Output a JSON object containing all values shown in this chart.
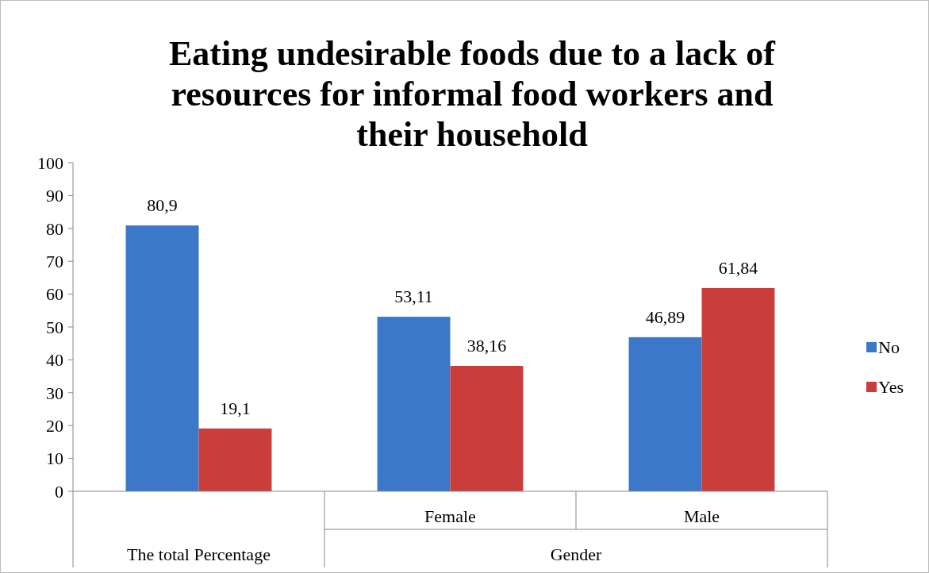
{
  "chart_data": {
    "type": "bar",
    "title": "Eating undesirable foods due to a lack of resources for informal food workers and their household",
    "categories": [
      null,
      "Female",
      "Male"
    ],
    "annotations": [
      "The total Percentage",
      "Gender"
    ],
    "series": [
      {
        "name": "No",
        "color": "#3b78c9",
        "values": [
          80.9,
          53.11,
          46.89
        ],
        "value_labels": [
          "80,9",
          "53,11",
          "46,89"
        ]
      },
      {
        "name": "Yes",
        "color": "#c93e3b",
        "values": [
          19.1,
          38.16,
          61.84
        ],
        "value_labels": [
          "19,1",
          "38,16",
          "61,84"
        ]
      }
    ],
    "ylim": [
      0,
      100
    ],
    "yticks": [
      0,
      10,
      20,
      30,
      40,
      50,
      60,
      70,
      80,
      90,
      100
    ],
    "grid": false,
    "legend": "right"
  }
}
